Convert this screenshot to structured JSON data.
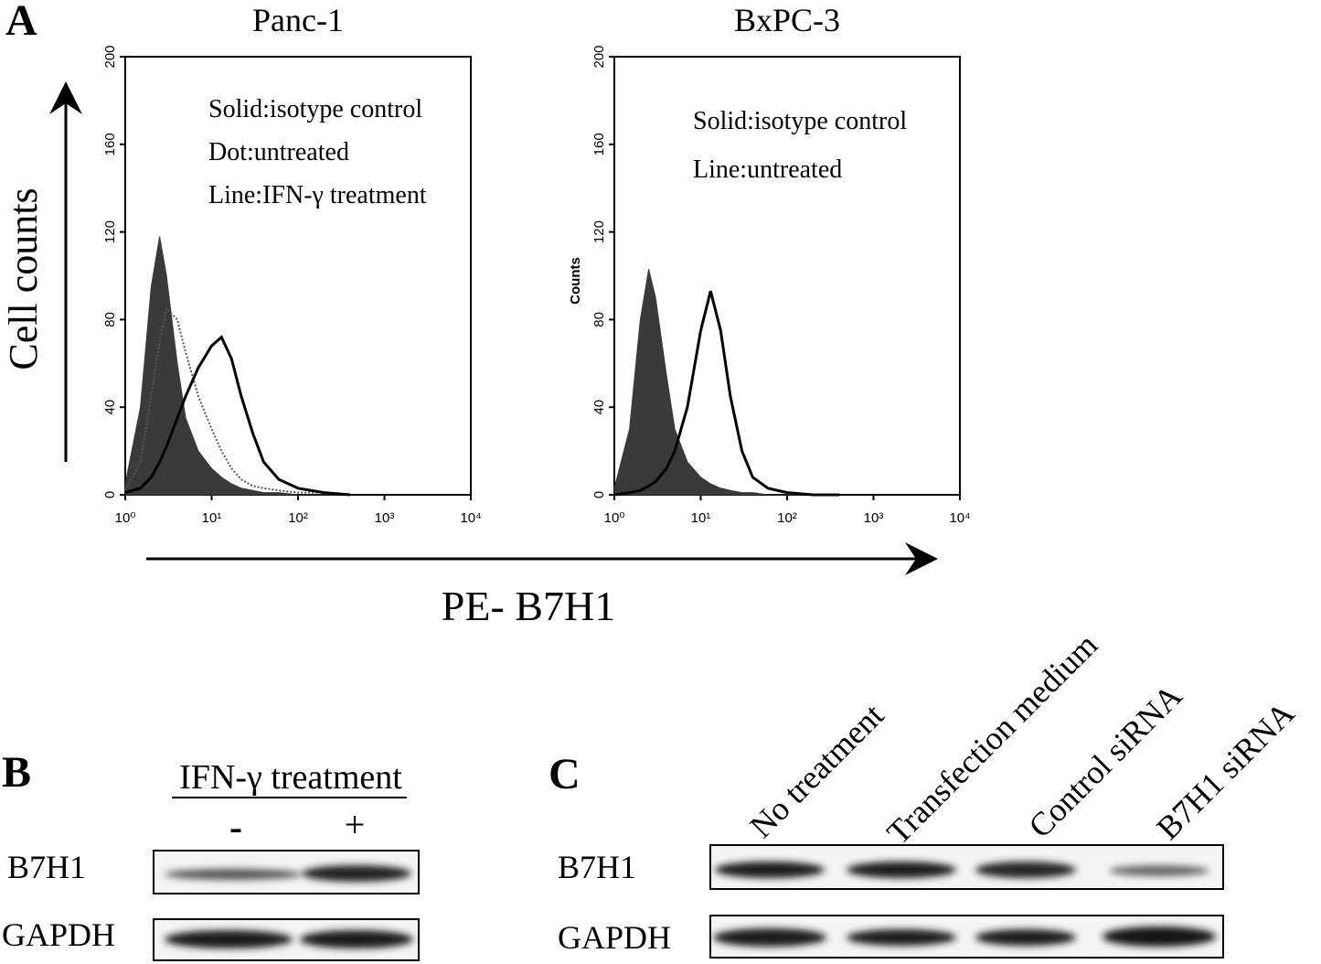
{
  "panels": {
    "a": "A",
    "b": "B",
    "c": "C"
  },
  "y_axis_label": "Cell counts",
  "x_axis_label": "PE- B7H1",
  "chart_data": [
    {
      "type": "line",
      "title": "Panc-1",
      "xscale": "log",
      "x": [
        1,
        1.5,
        2,
        2.5,
        3,
        4,
        5,
        7,
        10,
        13,
        17,
        22,
        30,
        40,
        60,
        100,
        200,
        400
      ],
      "xlim": [
        1,
        10000
      ],
      "xticks": [
        {
          "value": 1,
          "label": "10⁰"
        },
        {
          "value": 10,
          "label": "10¹"
        },
        {
          "value": 100,
          "label": "10²"
        },
        {
          "value": 1000,
          "label": "10³"
        },
        {
          "value": 10000,
          "label": "10⁴"
        }
      ],
      "ylim": [
        0,
        200
      ],
      "yticks": [
        0,
        40,
        80,
        120,
        160,
        200
      ],
      "series": [
        {
          "name": "Solid:isotype control",
          "style": "solid",
          "color": "#3a3a3a",
          "values": [
            5,
            40,
            95,
            118,
            100,
            60,
            35,
            20,
            12,
            8,
            5,
            3,
            2,
            1,
            1,
            0,
            0,
            0
          ]
        },
        {
          "name": "Dot:untreated",
          "style": "dotted",
          "color": "#555555",
          "values": [
            2,
            15,
            45,
            70,
            85,
            80,
            65,
            45,
            30,
            20,
            12,
            7,
            4,
            3,
            2,
            1,
            1,
            0
          ]
        },
        {
          "name": "Line:IFN-γ treatment",
          "style": "line",
          "color": "#000000",
          "values": [
            1,
            3,
            8,
            15,
            22,
            35,
            45,
            58,
            68,
            72,
            62,
            45,
            28,
            15,
            7,
            3,
            1,
            0
          ]
        }
      ]
    },
    {
      "type": "line",
      "title": "BxPC-3",
      "xscale": "log",
      "ylabel": "Counts",
      "x": [
        1,
        1.5,
        2,
        2.5,
        3,
        4,
        5,
        7,
        10,
        13,
        17,
        22,
        30,
        40,
        60,
        100,
        200,
        400
      ],
      "xlim": [
        1,
        10000
      ],
      "xticks": [
        {
          "value": 1,
          "label": "10⁰"
        },
        {
          "value": 10,
          "label": "10¹"
        },
        {
          "value": 100,
          "label": "10²"
        },
        {
          "value": 1000,
          "label": "10³"
        },
        {
          "value": 10000,
          "label": "10⁴"
        }
      ],
      "ylim": [
        0,
        200
      ],
      "yticks": [
        0,
        40,
        80,
        120,
        160,
        200
      ],
      "series": [
        {
          "name": "Solid:isotype control",
          "style": "solid",
          "color": "#3a3a3a",
          "values": [
            3,
            30,
            80,
            103,
            90,
            55,
            30,
            15,
            8,
            5,
            3,
            2,
            1,
            1,
            0,
            0,
            0,
            0
          ]
        },
        {
          "name": "Line:untreated",
          "style": "line",
          "color": "#000000",
          "values": [
            0,
            1,
            2,
            4,
            6,
            12,
            20,
            40,
            75,
            93,
            75,
            45,
            20,
            8,
            3,
            1,
            0,
            0
          ]
        }
      ]
    }
  ],
  "blot_b": {
    "header": "IFN-γ treatment",
    "lanes": [
      "-",
      "+"
    ],
    "rows": [
      "B7H1",
      "GAPDH"
    ]
  },
  "blot_c": {
    "lanes": [
      "No treatment",
      "Transfection medium",
      "Control siRNA",
      "B7H1 siRNA"
    ],
    "rows": [
      "B7H1",
      "GAPDH"
    ]
  }
}
